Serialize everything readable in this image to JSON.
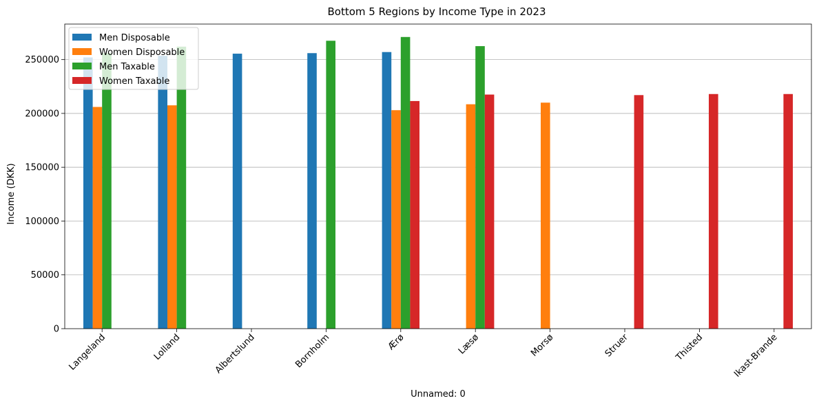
{
  "chart_data": {
    "type": "bar",
    "title": "Bottom 5 Regions by Income Type in 2023",
    "xlabel": "Unnamed: 0",
    "ylabel": "Income (DKK)",
    "categories": [
      "Langeland",
      "Lolland",
      "Albertslund",
      "Bornholm",
      "Ærø",
      "Læsø",
      "Morsø",
      "Struer",
      "Thisted",
      "Ikast-Brande"
    ],
    "ylim": [
      0,
      283000
    ],
    "yticks": [
      "0",
      "50000",
      "100000",
      "150000",
      "200000",
      "250000"
    ],
    "ytick_values": [
      0,
      50000,
      100000,
      150000,
      200000,
      250000
    ],
    "grid": "y",
    "legend_position": "top-left",
    "series": [
      {
        "name": "Men Disposable",
        "color": "#1f77b4",
        "values": [
          252000,
          253500,
          255500,
          256000,
          257000,
          null,
          null,
          null,
          null,
          null
        ]
      },
      {
        "name": "Women Disposable",
        "color": "#ff7f0e",
        "values": [
          206000,
          207500,
          null,
          null,
          203000,
          208500,
          210000,
          null,
          null,
          null
        ]
      },
      {
        "name": "Men Taxable",
        "color": "#2ca02c",
        "values": [
          256000,
          262000,
          null,
          267500,
          271000,
          262500,
          null,
          null,
          null,
          null
        ]
      },
      {
        "name": "Women Taxable",
        "color": "#d62728",
        "values": [
          null,
          null,
          null,
          null,
          211500,
          217500,
          null,
          217000,
          218000,
          218000
        ]
      }
    ]
  }
}
